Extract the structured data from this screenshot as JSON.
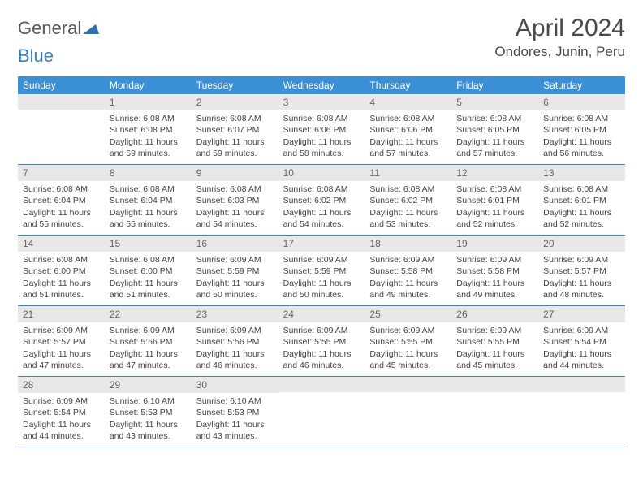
{
  "logo": {
    "text1": "General",
    "text2": "Blue"
  },
  "title": "April 2024",
  "location": "Ondores, Junin, Peru",
  "colors": {
    "header_bg": "#3b8fd4",
    "header_text": "#ffffff",
    "daynum_bg": "#e8e8e8",
    "border": "#3b7fc4",
    "logo_gray": "#5a5a5a",
    "logo_blue": "#3b7fc4"
  },
  "weekdays": [
    "Sunday",
    "Monday",
    "Tuesday",
    "Wednesday",
    "Thursday",
    "Friday",
    "Saturday"
  ],
  "weeks": [
    [
      null,
      {
        "n": "1",
        "sr": "Sunrise: 6:08 AM",
        "ss": "Sunset: 6:08 PM",
        "d1": "Daylight: 11 hours",
        "d2": "and 59 minutes."
      },
      {
        "n": "2",
        "sr": "Sunrise: 6:08 AM",
        "ss": "Sunset: 6:07 PM",
        "d1": "Daylight: 11 hours",
        "d2": "and 59 minutes."
      },
      {
        "n": "3",
        "sr": "Sunrise: 6:08 AM",
        "ss": "Sunset: 6:06 PM",
        "d1": "Daylight: 11 hours",
        "d2": "and 58 minutes."
      },
      {
        "n": "4",
        "sr": "Sunrise: 6:08 AM",
        "ss": "Sunset: 6:06 PM",
        "d1": "Daylight: 11 hours",
        "d2": "and 57 minutes."
      },
      {
        "n": "5",
        "sr": "Sunrise: 6:08 AM",
        "ss": "Sunset: 6:05 PM",
        "d1": "Daylight: 11 hours",
        "d2": "and 57 minutes."
      },
      {
        "n": "6",
        "sr": "Sunrise: 6:08 AM",
        "ss": "Sunset: 6:05 PM",
        "d1": "Daylight: 11 hours",
        "d2": "and 56 minutes."
      }
    ],
    [
      {
        "n": "7",
        "sr": "Sunrise: 6:08 AM",
        "ss": "Sunset: 6:04 PM",
        "d1": "Daylight: 11 hours",
        "d2": "and 55 minutes."
      },
      {
        "n": "8",
        "sr": "Sunrise: 6:08 AM",
        "ss": "Sunset: 6:04 PM",
        "d1": "Daylight: 11 hours",
        "d2": "and 55 minutes."
      },
      {
        "n": "9",
        "sr": "Sunrise: 6:08 AM",
        "ss": "Sunset: 6:03 PM",
        "d1": "Daylight: 11 hours",
        "d2": "and 54 minutes."
      },
      {
        "n": "10",
        "sr": "Sunrise: 6:08 AM",
        "ss": "Sunset: 6:02 PM",
        "d1": "Daylight: 11 hours",
        "d2": "and 54 minutes."
      },
      {
        "n": "11",
        "sr": "Sunrise: 6:08 AM",
        "ss": "Sunset: 6:02 PM",
        "d1": "Daylight: 11 hours",
        "d2": "and 53 minutes."
      },
      {
        "n": "12",
        "sr": "Sunrise: 6:08 AM",
        "ss": "Sunset: 6:01 PM",
        "d1": "Daylight: 11 hours",
        "d2": "and 52 minutes."
      },
      {
        "n": "13",
        "sr": "Sunrise: 6:08 AM",
        "ss": "Sunset: 6:01 PM",
        "d1": "Daylight: 11 hours",
        "d2": "and 52 minutes."
      }
    ],
    [
      {
        "n": "14",
        "sr": "Sunrise: 6:08 AM",
        "ss": "Sunset: 6:00 PM",
        "d1": "Daylight: 11 hours",
        "d2": "and 51 minutes."
      },
      {
        "n": "15",
        "sr": "Sunrise: 6:08 AM",
        "ss": "Sunset: 6:00 PM",
        "d1": "Daylight: 11 hours",
        "d2": "and 51 minutes."
      },
      {
        "n": "16",
        "sr": "Sunrise: 6:09 AM",
        "ss": "Sunset: 5:59 PM",
        "d1": "Daylight: 11 hours",
        "d2": "and 50 minutes."
      },
      {
        "n": "17",
        "sr": "Sunrise: 6:09 AM",
        "ss": "Sunset: 5:59 PM",
        "d1": "Daylight: 11 hours",
        "d2": "and 50 minutes."
      },
      {
        "n": "18",
        "sr": "Sunrise: 6:09 AM",
        "ss": "Sunset: 5:58 PM",
        "d1": "Daylight: 11 hours",
        "d2": "and 49 minutes."
      },
      {
        "n": "19",
        "sr": "Sunrise: 6:09 AM",
        "ss": "Sunset: 5:58 PM",
        "d1": "Daylight: 11 hours",
        "d2": "and 49 minutes."
      },
      {
        "n": "20",
        "sr": "Sunrise: 6:09 AM",
        "ss": "Sunset: 5:57 PM",
        "d1": "Daylight: 11 hours",
        "d2": "and 48 minutes."
      }
    ],
    [
      {
        "n": "21",
        "sr": "Sunrise: 6:09 AM",
        "ss": "Sunset: 5:57 PM",
        "d1": "Daylight: 11 hours",
        "d2": "and 47 minutes."
      },
      {
        "n": "22",
        "sr": "Sunrise: 6:09 AM",
        "ss": "Sunset: 5:56 PM",
        "d1": "Daylight: 11 hours",
        "d2": "and 47 minutes."
      },
      {
        "n": "23",
        "sr": "Sunrise: 6:09 AM",
        "ss": "Sunset: 5:56 PM",
        "d1": "Daylight: 11 hours",
        "d2": "and 46 minutes."
      },
      {
        "n": "24",
        "sr": "Sunrise: 6:09 AM",
        "ss": "Sunset: 5:55 PM",
        "d1": "Daylight: 11 hours",
        "d2": "and 46 minutes."
      },
      {
        "n": "25",
        "sr": "Sunrise: 6:09 AM",
        "ss": "Sunset: 5:55 PM",
        "d1": "Daylight: 11 hours",
        "d2": "and 45 minutes."
      },
      {
        "n": "26",
        "sr": "Sunrise: 6:09 AM",
        "ss": "Sunset: 5:55 PM",
        "d1": "Daylight: 11 hours",
        "d2": "and 45 minutes."
      },
      {
        "n": "27",
        "sr": "Sunrise: 6:09 AM",
        "ss": "Sunset: 5:54 PM",
        "d1": "Daylight: 11 hours",
        "d2": "and 44 minutes."
      }
    ],
    [
      {
        "n": "28",
        "sr": "Sunrise: 6:09 AM",
        "ss": "Sunset: 5:54 PM",
        "d1": "Daylight: 11 hours",
        "d2": "and 44 minutes."
      },
      {
        "n": "29",
        "sr": "Sunrise: 6:10 AM",
        "ss": "Sunset: 5:53 PM",
        "d1": "Daylight: 11 hours",
        "d2": "and 43 minutes."
      },
      {
        "n": "30",
        "sr": "Sunrise: 6:10 AM",
        "ss": "Sunset: 5:53 PM",
        "d1": "Daylight: 11 hours",
        "d2": "and 43 minutes."
      },
      null,
      null,
      null,
      null
    ]
  ]
}
